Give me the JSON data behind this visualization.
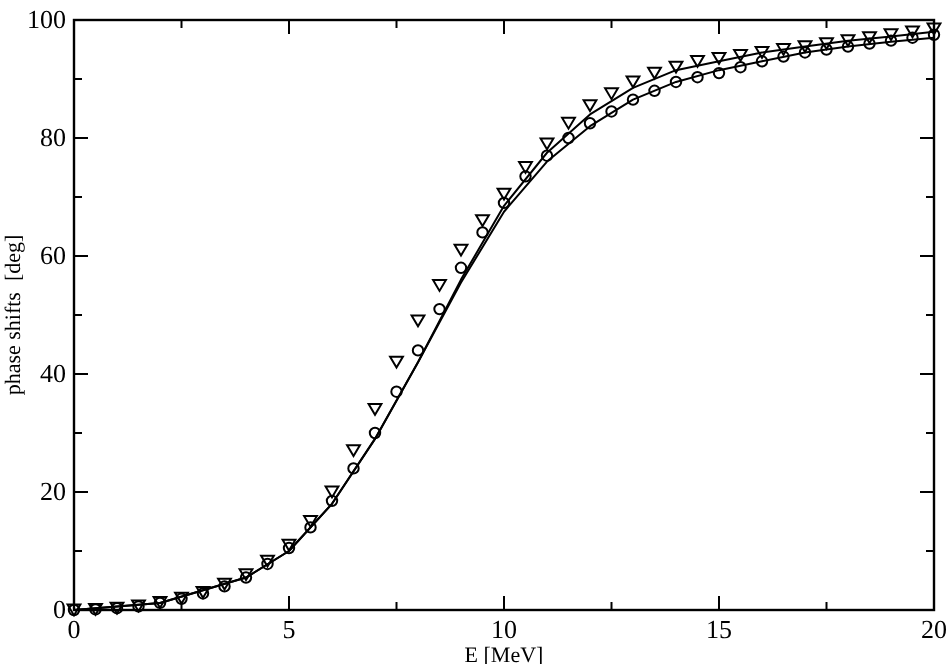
{
  "chart_data": {
    "type": "line",
    "xlabel": "E  [MeV]",
    "ylabel": "phase shifts  [deg]",
    "xlim": [
      0,
      20
    ],
    "ylim": [
      0,
      100
    ],
    "xticks": [
      0,
      {
        "value": 2.5,
        "label": null
      },
      5,
      {
        "value": 7.5,
        "label": null
      },
      10,
      {
        "value": 12.5,
        "label": null
      },
      15,
      {
        "value": 17.5,
        "label": null
      },
      20
    ],
    "yticks": [
      0,
      {
        "value": 10,
        "label": null
      },
      20,
      {
        "value": 30,
        "label": null
      },
      40,
      {
        "value": 50,
        "label": null
      },
      60,
      {
        "value": 70,
        "label": null
      },
      80,
      {
        "value": 90,
        "label": null
      },
      100
    ],
    "grid": false,
    "series": [
      {
        "color": "#000000",
        "marker": "none",
        "x": [
          0,
          2,
          4,
          5,
          6,
          7,
          8,
          9,
          10,
          11,
          12,
          13,
          14,
          15,
          16,
          17,
          18,
          19,
          20
        ],
        "values": [
          0,
          1.2,
          5.5,
          10,
          18,
          29,
          42,
          56,
          68.5,
          77.5,
          84,
          88.5,
          91.5,
          93,
          94.5,
          95.5,
          96.5,
          97.2,
          98
        ]
      },
      {
        "color": "#000000",
        "marker": "none",
        "x": [
          0,
          2,
          4,
          5,
          6,
          7,
          8,
          9,
          10,
          11,
          12,
          13,
          14,
          15,
          16,
          17,
          18,
          19,
          20
        ],
        "values": [
          0,
          1.2,
          5.5,
          10,
          18,
          29,
          42,
          55.5,
          67.5,
          76,
          82,
          86.5,
          89.5,
          91.5,
          93,
          94.5,
          95.5,
          96.3,
          97
        ]
      },
      {
        "type": "scatter",
        "color": "#000000",
        "marker": "triangle",
        "x": [
          0,
          0.5,
          1,
          1.5,
          2,
          2.5,
          3,
          3.5,
          4,
          4.5,
          5,
          5.5,
          6,
          6.5,
          7,
          7.5,
          8,
          8.5,
          9,
          9.5,
          10,
          10.5,
          11,
          11.5,
          12,
          12.5,
          13,
          13.5,
          14,
          14.5,
          15,
          15.5,
          16,
          16.5,
          17,
          17.5,
          18,
          18.5,
          19,
          19.5,
          20
        ],
        "values": [
          0,
          0.1,
          0.3,
          0.7,
          1.3,
          2,
          3,
          4.4,
          6,
          8.3,
          11,
          15,
          20,
          27,
          34,
          42,
          49,
          55,
          61,
          66,
          70.5,
          75,
          79,
          82.5,
          85.5,
          87.5,
          89.5,
          91,
          92,
          93,
          93.5,
          94,
          94.5,
          95,
          95.5,
          96,
          96.5,
          97,
          97.5,
          98,
          98.5
        ]
      },
      {
        "type": "scatter",
        "color": "#000000",
        "marker": "circle",
        "x": [
          0,
          0.5,
          1,
          1.5,
          2,
          2.5,
          3,
          3.5,
          4,
          4.5,
          5,
          5.5,
          6,
          6.5,
          7,
          7.5,
          8,
          8.5,
          9,
          9.5,
          10,
          10.5,
          11,
          11.5,
          12,
          12.5,
          13,
          13.5,
          14,
          14.5,
          15,
          15.5,
          16,
          16.5,
          17,
          17.5,
          18,
          18.5,
          19,
          19.5,
          20
        ],
        "values": [
          0,
          0.1,
          0.3,
          0.6,
          1.2,
          1.9,
          2.8,
          4,
          5.5,
          7.8,
          10.5,
          14,
          18.5,
          24,
          30,
          37,
          44,
          51,
          58,
          64,
          69,
          73.5,
          77,
          80,
          82.5,
          84.5,
          86.5,
          88,
          89.5,
          90.3,
          91,
          92,
          93,
          93.8,
          94.5,
          95,
          95.5,
          96,
          96.5,
          97,
          97.5
        ]
      }
    ]
  }
}
